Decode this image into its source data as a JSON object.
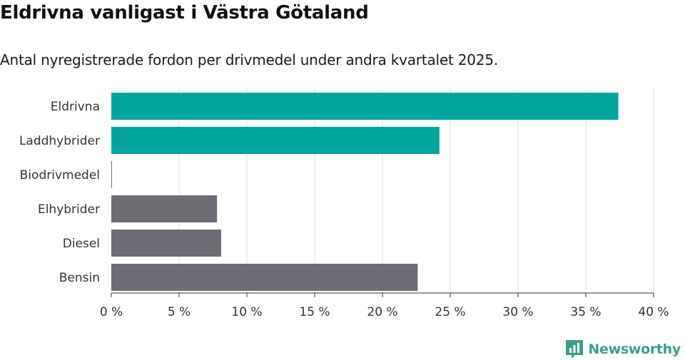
{
  "header": {
    "title": "Eldrivna vanligast i Västra Götaland",
    "subtitle": "Antal nyregistrerade fordon per drivmedel under andra kvartalet 2025."
  },
  "chart_data": {
    "type": "bar",
    "orientation": "horizontal",
    "categories": [
      "Eldrivna",
      "Laddhybrider",
      "Biodrivmedel",
      "Elhybrider",
      "Diesel",
      "Bensin"
    ],
    "values": [
      37.4,
      24.2,
      0.05,
      7.8,
      8.1,
      22.6
    ],
    "bar_colors": [
      "#00a59b",
      "#00a59b",
      "#6d6d75",
      "#6d6d75",
      "#6d6d75",
      "#6d6d75"
    ],
    "x_ticks": [
      0,
      5,
      10,
      15,
      20,
      25,
      30,
      35,
      40
    ],
    "x_tick_labels": [
      "0 %",
      "5 %",
      "10 %",
      "15 %",
      "20 %",
      "25 %",
      "30 %",
      "35 %",
      "40 %"
    ],
    "xlim": [
      0,
      40
    ],
    "grid": true,
    "title": "Eldrivna vanligast i Västra Götaland",
    "xlabel": "",
    "ylabel": ""
  },
  "brand": {
    "name": "Newsworthy",
    "icon": "bar-chart-logo-icon",
    "color": "#3a9d8e"
  }
}
